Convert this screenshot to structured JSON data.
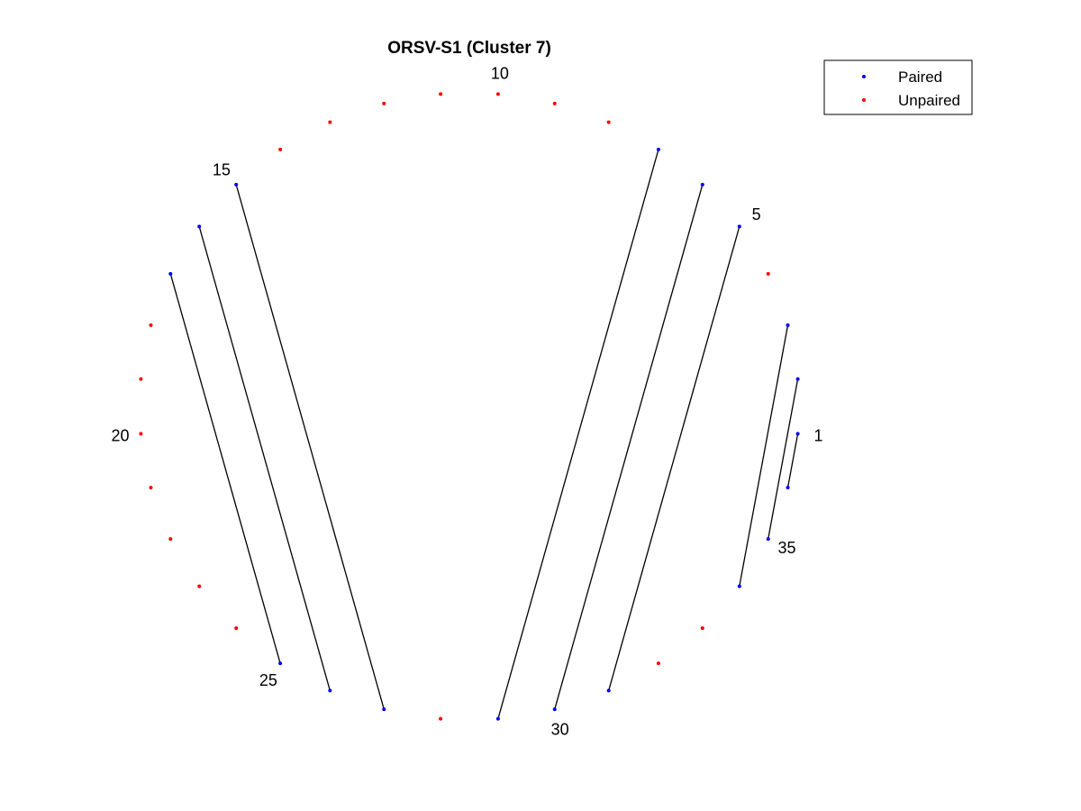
{
  "chart_data": {
    "type": "arc-diagram",
    "title": "ORSV-S1 (Cluster 7)",
    "n_positions": 36,
    "position_labels": [
      1,
      5,
      10,
      15,
      20,
      25,
      30,
      35
    ],
    "pairs": [
      [
        1,
        36
      ],
      [
        2,
        35
      ],
      [
        3,
        34
      ],
      [
        5,
        31
      ],
      [
        6,
        30
      ],
      [
        7,
        29
      ],
      [
        15,
        27
      ],
      [
        16,
        26
      ],
      [
        17,
        25
      ]
    ],
    "paired_positions": [
      1,
      2,
      3,
      5,
      6,
      7,
      15,
      16,
      17,
      25,
      26,
      27,
      29,
      30,
      31,
      34,
      35,
      36
    ],
    "unpaired_positions": [
      4,
      8,
      9,
      10,
      11,
      12,
      13,
      14,
      18,
      19,
      20,
      21,
      22,
      23,
      24,
      28,
      32,
      33
    ],
    "legend": {
      "placement": "top-right",
      "entries": [
        {
          "label": "Paired",
          "color": "#0000ff"
        },
        {
          "label": "Unpaired",
          "color": "#ff0000"
        }
      ]
    },
    "colors": {
      "paired": "#0000ff",
      "unpaired": "#ff0000",
      "pair_line": "#000000"
    }
  }
}
